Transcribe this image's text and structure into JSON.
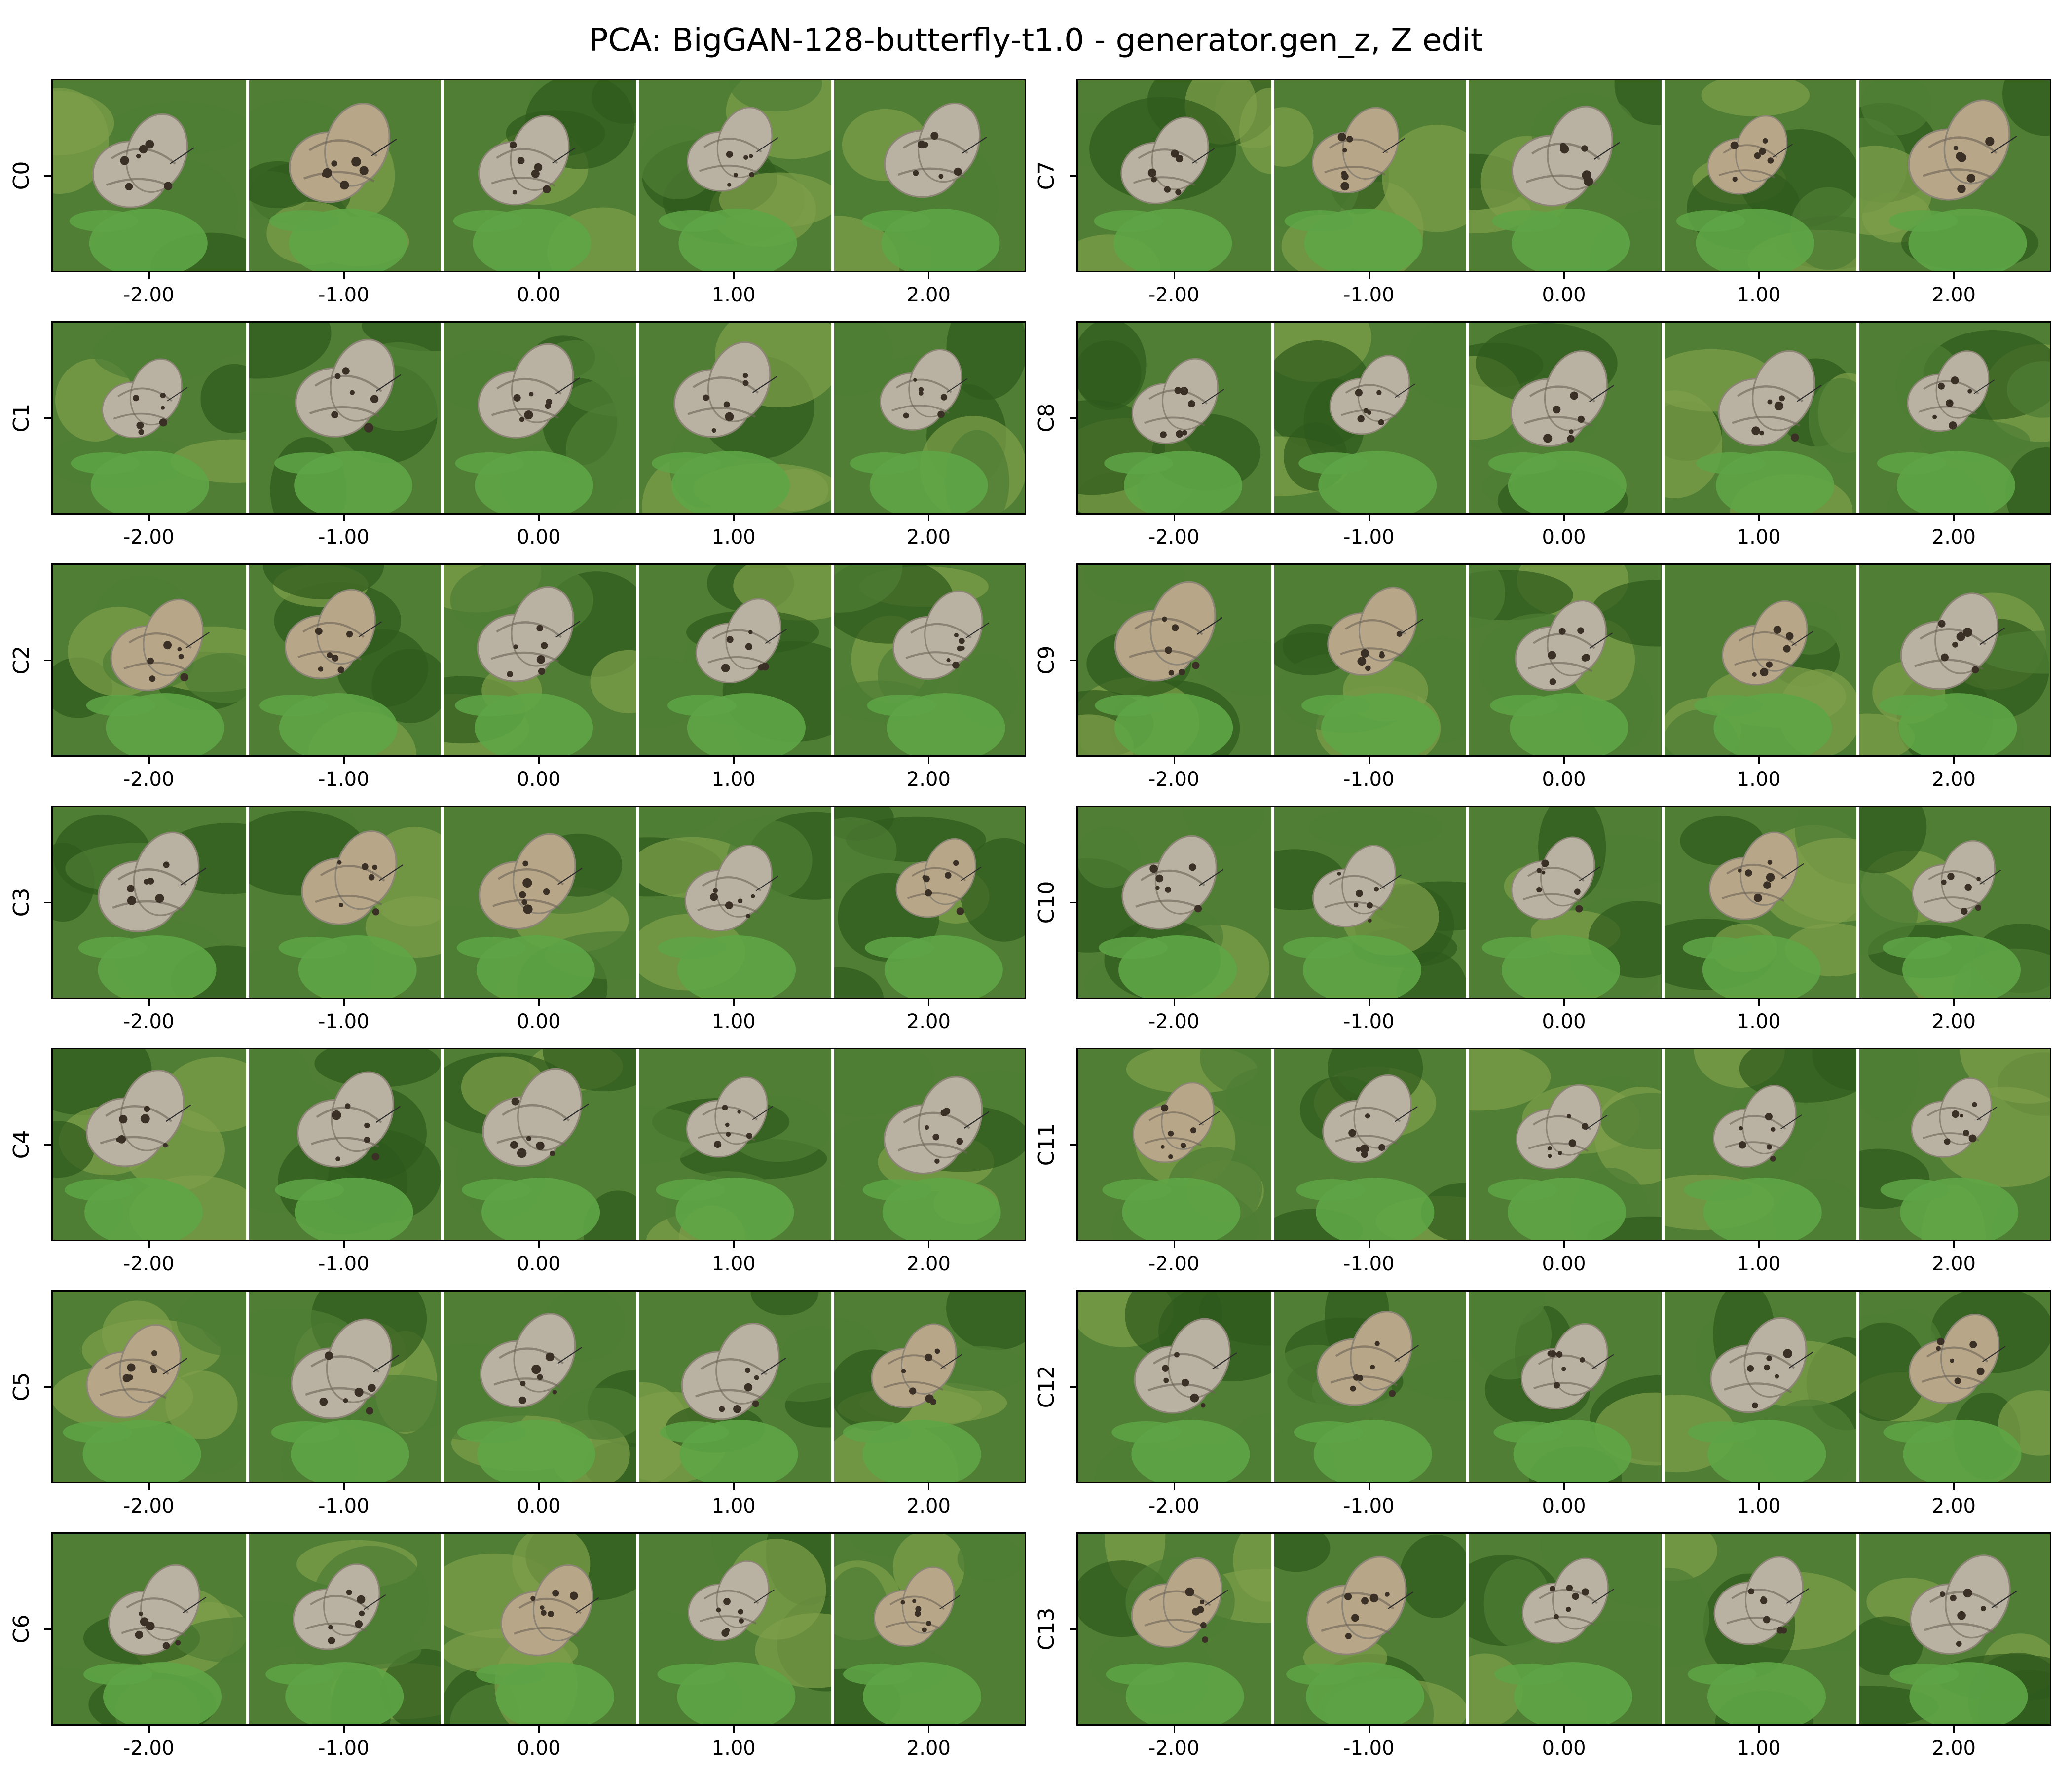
{
  "title": "PCA: BigGAN-128-butterfly-t1.0 - generator.gen_z, Z edit",
  "x_tick_labels": [
    "-2.00",
    "-1.00",
    "0.00",
    "1.00",
    "2.00"
  ],
  "left_rows": [
    {
      "label": "C0"
    },
    {
      "label": "C1"
    },
    {
      "label": "C2"
    },
    {
      "label": "C3"
    },
    {
      "label": "C4"
    },
    {
      "label": "C5"
    },
    {
      "label": "C6"
    }
  ],
  "right_rows": [
    {
      "label": "C7"
    },
    {
      "label": "C8"
    },
    {
      "label": "C9"
    },
    {
      "label": "C10"
    },
    {
      "label": "C11"
    },
    {
      "label": "C12"
    },
    {
      "label": "C13"
    }
  ],
  "colors": {
    "background_dark": "#2f5a1d",
    "background_mid": "#4f7e34",
    "background_light": "#7fa04a",
    "leaf": "#5ea546",
    "wing": "#b9b2a2",
    "wing_spots": "#3a3025",
    "separator": "#ffffff"
  },
  "subject": "butterfly-on-leaf"
}
